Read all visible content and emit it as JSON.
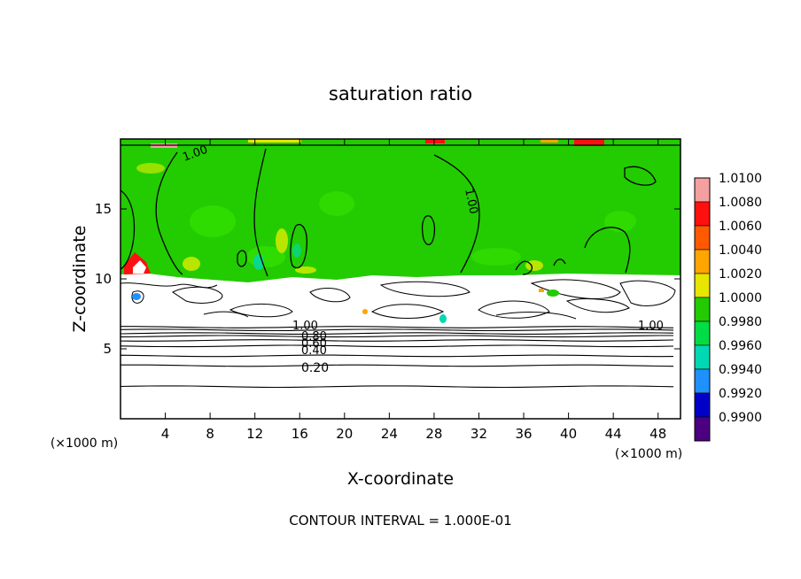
{
  "chart_data": {
    "type": "heatmap",
    "title": "saturation ratio",
    "xlabel": "X-coordinate",
    "ylabel": "Z-coordinate",
    "x_unit": "(×1000 m)",
    "xlim": [
      0,
      50
    ],
    "ylim": [
      0,
      20
    ],
    "x_ticks": [
      4,
      8,
      12,
      16,
      20,
      24,
      28,
      32,
      36,
      40,
      44,
      48
    ],
    "y_ticks": [
      5,
      10,
      15
    ],
    "x_tick_labels": [
      "4",
      "8",
      "12",
      "16",
      "20",
      "24",
      "28",
      "32",
      "36",
      "40",
      "44",
      "48"
    ],
    "y_tick_labels": [
      "5",
      "10",
      "15"
    ],
    "colorbar": {
      "levels": [
        1.01,
        1.008,
        1.006,
        1.004,
        1.002,
        1.0,
        0.998,
        0.996,
        0.994,
        0.992,
        0.99
      ],
      "labels": [
        "1.0100",
        "1.0080",
        "1.0060",
        "1.0040",
        "1.0020",
        "1.0000",
        "0.9980",
        "0.9960",
        "0.9940",
        "0.9920",
        "0.9900"
      ],
      "colors": [
        "#f4a0a0",
        "#ff1010",
        "#ff5a00",
        "#ffa500",
        "#e6e600",
        "#22cc00",
        "#00dd44",
        "#00d8b4",
        "#2090ff",
        "#0000c8",
        "#4b0082"
      ]
    },
    "contour_labels": [
      "1.00",
      "1.00",
      "1.00",
      "1.00",
      "0.80",
      "0.60",
      "0.40",
      "0.20"
    ],
    "contour_interval_text": "CONTOUR INTERVAL = 1.000E-01",
    "regions": {
      "saturated_layer_z": [
        10.2,
        19.6
      ],
      "stable_layer_levels": [
        2.3,
        3.8,
        4.5,
        5.2,
        5.6,
        5.9,
        6.1,
        6.35,
        6.55
      ]
    }
  }
}
